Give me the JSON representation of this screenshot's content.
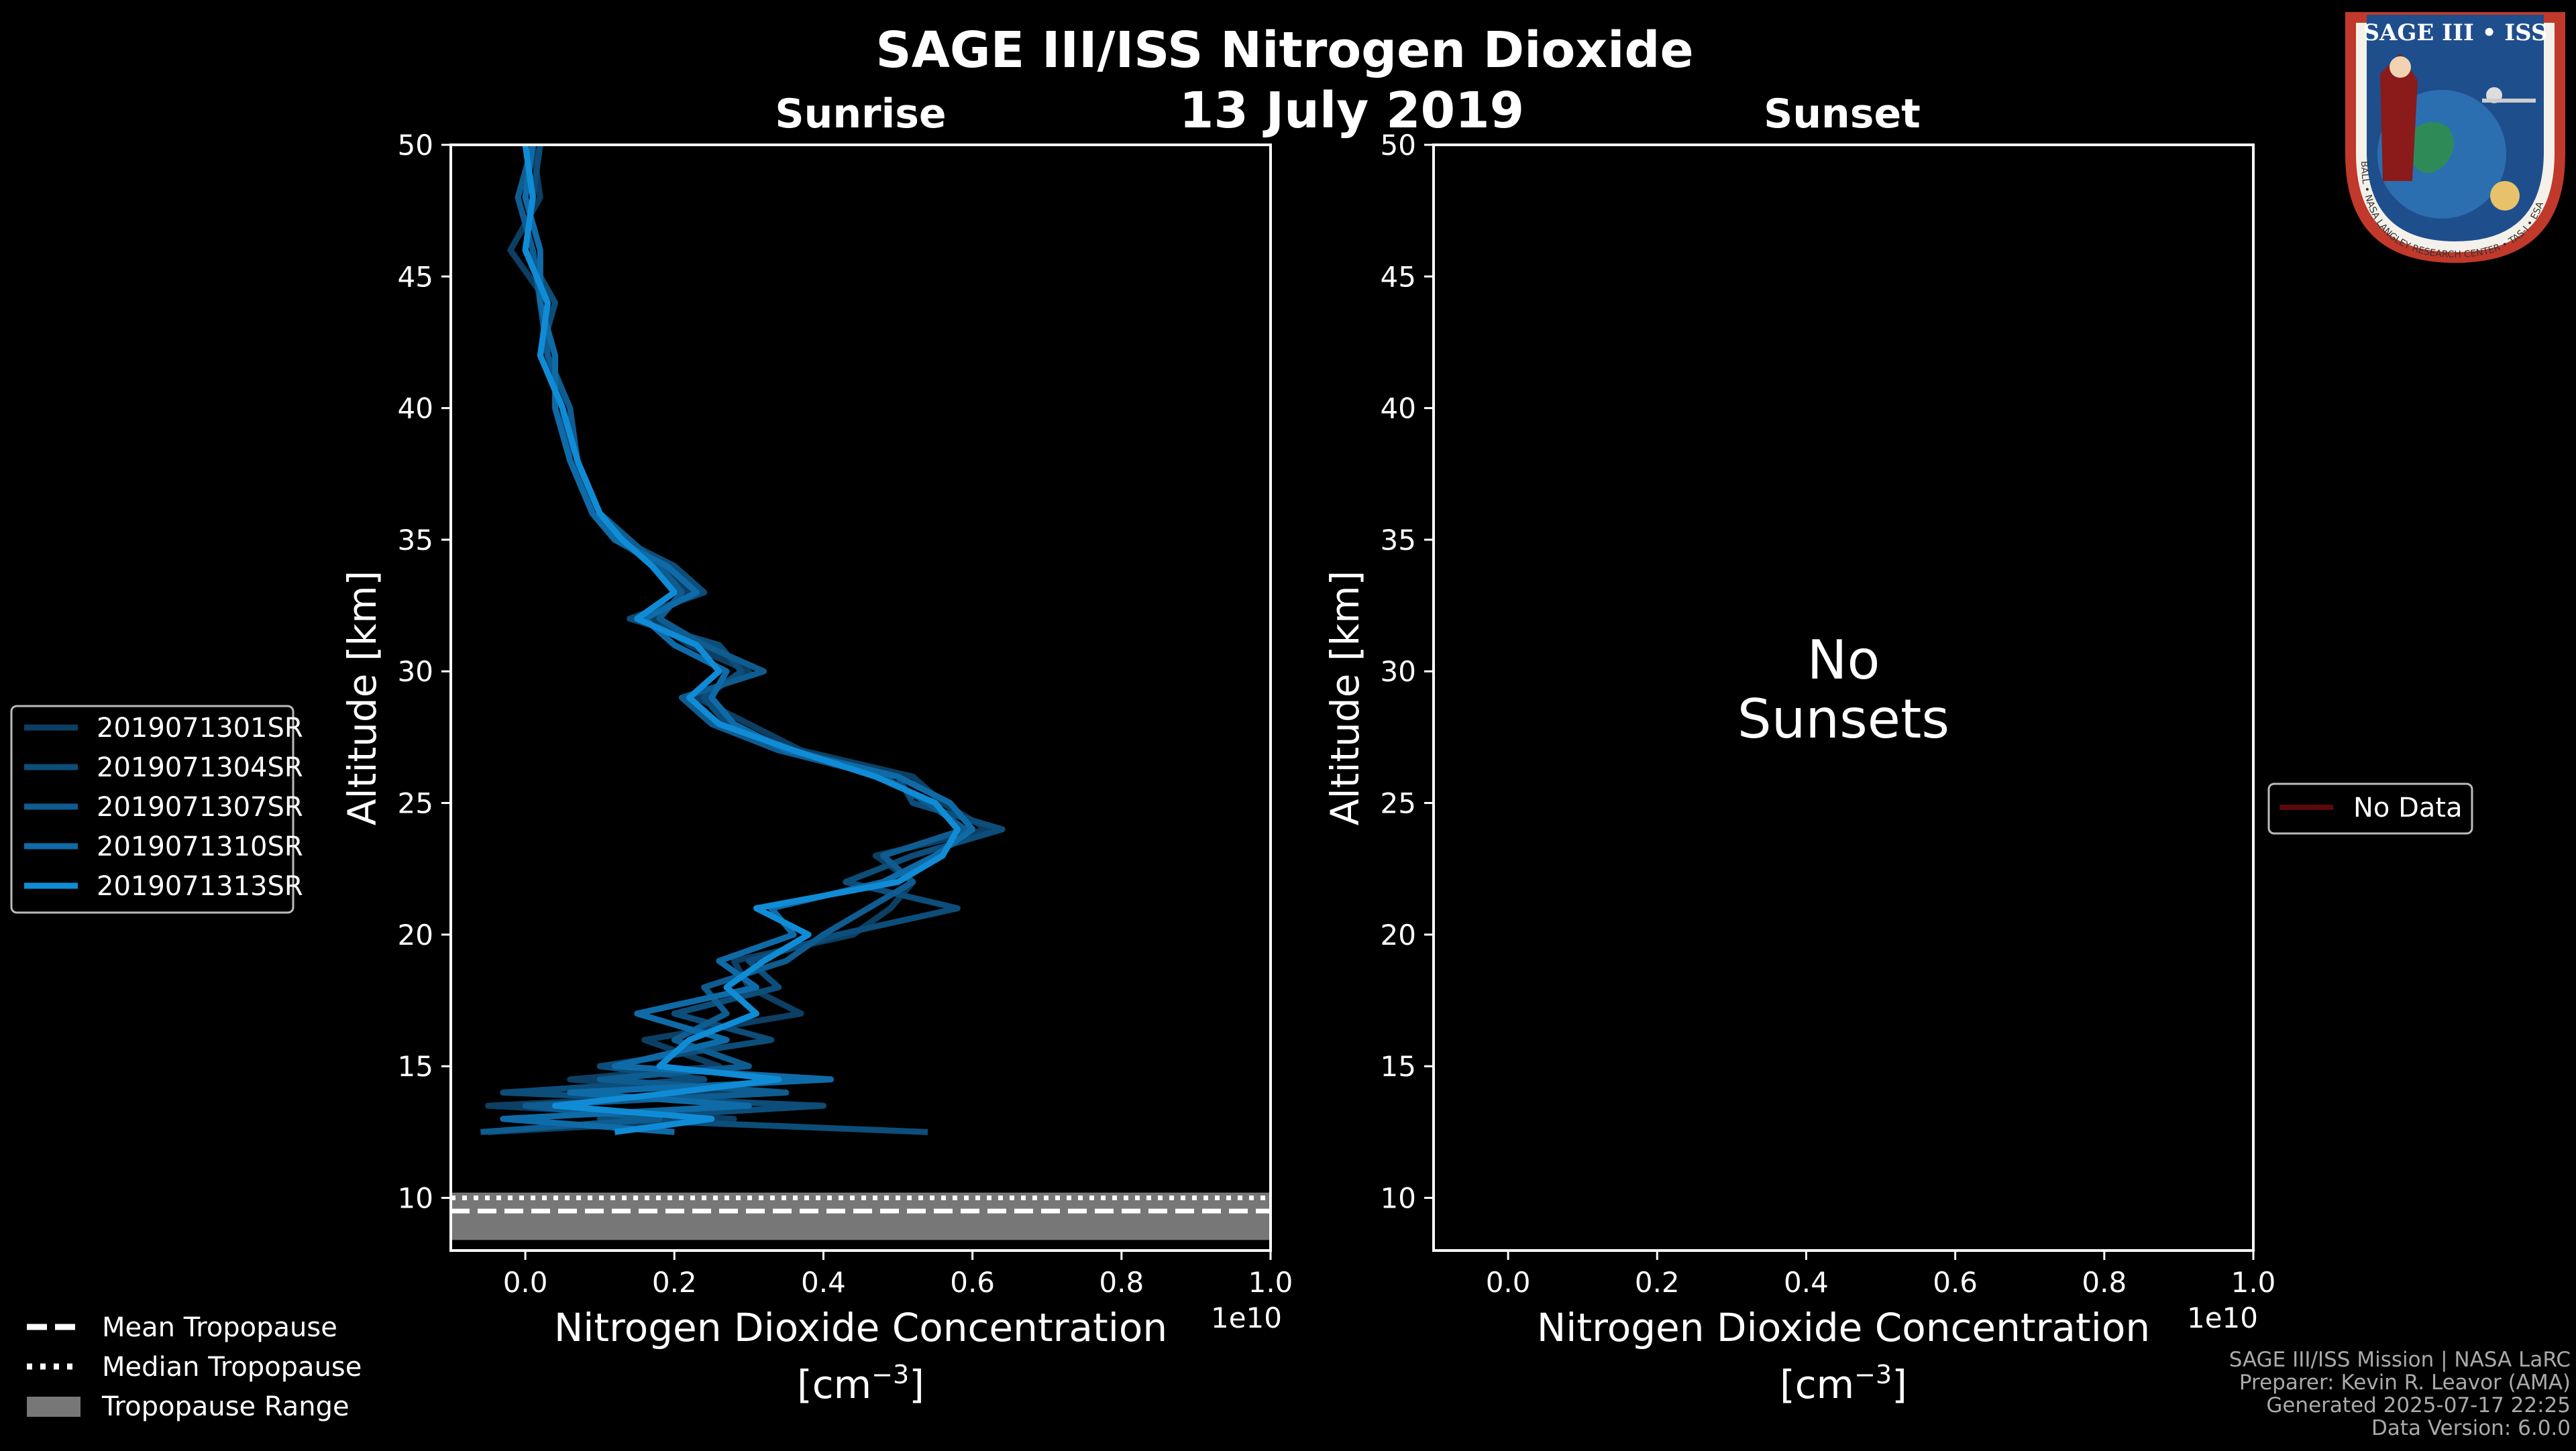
{
  "header": {
    "title": "SAGE III/ISS Nitrogen Dioxide",
    "date": "13 July 2019"
  },
  "logo": {
    "text_top": "SAGE III • ISS",
    "text_ring": "BALL • NASA LANGLEY RESEARCH CENTER • TAS-I • ESA",
    "colors": {
      "ring": "#c0392b",
      "inner": "#1f4e8c",
      "gold": "#e8c26a"
    }
  },
  "footer": {
    "lines": [
      "SAGE III/ISS Mission | NASA LaRC",
      "Preparer: Kevin R. Leavor (AMA)",
      "Generated 2025-07-17 22:25",
      "Data Version: 6.0.0"
    ]
  },
  "tropopause_legend": {
    "items": [
      "Mean Tropopause",
      "Median Tropopause",
      "Tropopause Range"
    ]
  },
  "sunrise_legend": {
    "items": [
      "2019071301SR",
      "2019071304SR",
      "2019071307SR",
      "2019071310SR",
      "2019071313SR"
    ]
  },
  "sunset_legend": {
    "items": [
      "No Data"
    ]
  },
  "sunset_message": [
    "No",
    "Sunsets"
  ],
  "colors": {
    "series": [
      "#0c3f63",
      "#0d4d79",
      "#0e5c90",
      "#0f6ba7",
      "#108cd6"
    ],
    "no_data": "#5a0a0a",
    "tropopause_range": "#777777"
  },
  "chart_data": [
    {
      "type": "line",
      "title": "Sunrise",
      "xlabel": "Nitrogen Dioxide Concentration",
      "xlabel_unit": "[cm",
      "xlabel_unit_exp": "−3",
      "xlabel_unit_close": "]",
      "x_offset_label": "1e10",
      "ylabel": "Altitude [km]",
      "xlim": [
        -0.1,
        1.0
      ],
      "ylim": [
        8,
        50
      ],
      "x_ticks": [
        "0.0",
        "0.2",
        "0.4",
        "0.6",
        "0.8",
        "1.0"
      ],
      "x_tick_values": [
        0.0,
        0.2,
        0.4,
        0.6,
        0.8,
        1.0
      ],
      "y_ticks": [
        "10",
        "15",
        "20",
        "25",
        "30",
        "35",
        "40",
        "45",
        "50"
      ],
      "y_tick_values": [
        10,
        15,
        20,
        25,
        30,
        35,
        40,
        45,
        50
      ],
      "grid": false,
      "legend_position": "left",
      "tropopause": {
        "mean": 9.5,
        "median": 10.0,
        "range": [
          8.4,
          10.2
        ]
      },
      "series": [
        {
          "name": "2019071301SR",
          "y": [
            12.5,
            13.0,
            13.5,
            14.0,
            14.5,
            15.0,
            16.0,
            17.0,
            18.0,
            19.0,
            20.0,
            21.0,
            22.0,
            23.0,
            24.0,
            25.0,
            26.0,
            27.0,
            28.0,
            29.0,
            30.0,
            31.0,
            32.0,
            33.0,
            34.0,
            35.0,
            36.0,
            38.0,
            40.0,
            42.0,
            44.0,
            46.0,
            48.0,
            50.0
          ],
          "x": [
            -0.05,
            0.28,
            -0.05,
            0.3,
            0.06,
            0.26,
            0.16,
            0.37,
            0.3,
            0.28,
            0.44,
            0.49,
            0.52,
            0.47,
            0.62,
            0.56,
            0.52,
            0.37,
            0.3,
            0.23,
            0.3,
            0.22,
            0.17,
            0.22,
            0.18,
            0.12,
            0.09,
            0.07,
            0.05,
            0.03,
            0.03,
            -0.02,
            0.02,
            0.01
          ]
        },
        {
          "name": "2019071304SR",
          "y": [
            12.5,
            13.0,
            13.5,
            14.0,
            14.5,
            15.0,
            16.0,
            17.0,
            18.0,
            19.0,
            20.0,
            21.0,
            22.0,
            23.0,
            24.0,
            25.0,
            26.0,
            27.0,
            28.0,
            29.0,
            30.0,
            31.0,
            32.0,
            33.0,
            34.0,
            35.0,
            36.0,
            38.0,
            40.0,
            42.0,
            44.0,
            46.0,
            48.0,
            50.0
          ],
          "x": [
            0.54,
            0.1,
            0.4,
            -0.03,
            0.24,
            0.1,
            0.33,
            0.2,
            0.34,
            0.3,
            0.42,
            0.58,
            0.43,
            0.52,
            0.64,
            0.52,
            0.5,
            0.36,
            0.27,
            0.24,
            0.29,
            0.26,
            0.14,
            0.24,
            0.2,
            0.13,
            0.1,
            0.06,
            0.05,
            0.02,
            0.04,
            0.0,
            0.01,
            0.02
          ]
        },
        {
          "name": "2019071307SR",
          "y": [
            12.5,
            13.0,
            13.5,
            14.0,
            14.5,
            15.0,
            16.0,
            17.0,
            18.0,
            19.0,
            20.0,
            21.0,
            22.0,
            23.0,
            24.0,
            25.0,
            26.0,
            27.0,
            28.0,
            29.0,
            30.0,
            31.0,
            32.0,
            33.0,
            34.0,
            35.0,
            36.0,
            38.0,
            40.0,
            42.0,
            44.0,
            46.0,
            48.0,
            50.0
          ],
          "x": [
            -0.06,
            0.18,
            0.0,
            0.35,
            0.1,
            0.3,
            0.2,
            0.27,
            0.24,
            0.35,
            0.4,
            0.46,
            0.52,
            0.48,
            0.59,
            0.54,
            0.48,
            0.34,
            0.25,
            0.21,
            0.32,
            0.24,
            0.18,
            0.21,
            0.18,
            0.14,
            0.1,
            0.07,
            0.06,
            0.03,
            0.02,
            0.01,
            -0.01,
            0.01
          ]
        },
        {
          "name": "2019071310SR",
          "y": [
            12.5,
            13.0,
            13.5,
            14.0,
            14.5,
            15.0,
            16.0,
            17.0,
            18.0,
            19.0,
            20.0,
            21.0,
            22.0,
            23.0,
            24.0,
            25.0,
            26.0,
            27.0,
            28.0,
            29.0,
            30.0,
            31.0,
            32.0,
            33.0,
            34.0,
            35.0,
            36.0,
            38.0,
            40.0,
            42.0,
            44.0,
            46.0,
            48.0,
            50.0
          ],
          "x": [
            0.2,
            -0.03,
            0.3,
            0.06,
            0.41,
            0.12,
            0.27,
            0.15,
            0.31,
            0.26,
            0.36,
            0.33,
            0.48,
            0.55,
            0.6,
            0.57,
            0.5,
            0.35,
            0.28,
            0.25,
            0.27,
            0.2,
            0.16,
            0.23,
            0.19,
            0.12,
            0.09,
            0.06,
            0.04,
            0.04,
            0.02,
            0.02,
            0.0,
            0.01
          ]
        },
        {
          "name": "2019071313SR",
          "y": [
            12.5,
            13.0,
            13.5,
            14.0,
            14.5,
            15.0,
            16.0,
            17.0,
            18.0,
            19.0,
            20.0,
            21.0,
            22.0,
            23.0,
            24.0,
            25.0,
            26.0,
            27.0,
            28.0,
            29.0,
            30.0,
            31.0,
            32.0,
            33.0,
            34.0,
            35.0,
            36.0,
            38.0,
            40.0,
            42.0,
            44.0,
            46.0,
            48.0,
            50.0
          ],
          "x": [
            0.12,
            0.25,
            0.04,
            0.2,
            0.34,
            0.18,
            0.22,
            0.31,
            0.27,
            0.32,
            0.38,
            0.31,
            0.5,
            0.56,
            0.58,
            0.55,
            0.47,
            0.36,
            0.26,
            0.22,
            0.26,
            0.23,
            0.15,
            0.2,
            0.17,
            0.13,
            0.1,
            0.07,
            0.05,
            0.02,
            0.03,
            0.0,
            0.01,
            0.0
          ]
        }
      ]
    },
    {
      "type": "line",
      "title": "Sunset",
      "xlabel": "Nitrogen Dioxide Concentration",
      "xlabel_unit": "[cm",
      "xlabel_unit_exp": "−3",
      "xlabel_unit_close": "]",
      "x_offset_label": "1e10",
      "ylabel": "Altitude [km]",
      "xlim": [
        -0.1,
        1.0
      ],
      "ylim": [
        8,
        50
      ],
      "x_ticks": [
        "0.0",
        "0.2",
        "0.4",
        "0.6",
        "0.8",
        "1.0"
      ],
      "x_tick_values": [
        0.0,
        0.2,
        0.4,
        0.6,
        0.8,
        1.0
      ],
      "y_ticks": [
        "10",
        "15",
        "20",
        "25",
        "30",
        "35",
        "40",
        "45",
        "50"
      ],
      "y_tick_values": [
        10,
        15,
        20,
        25,
        30,
        35,
        40,
        45,
        50
      ],
      "grid": false,
      "legend_position": "right",
      "series": []
    }
  ]
}
